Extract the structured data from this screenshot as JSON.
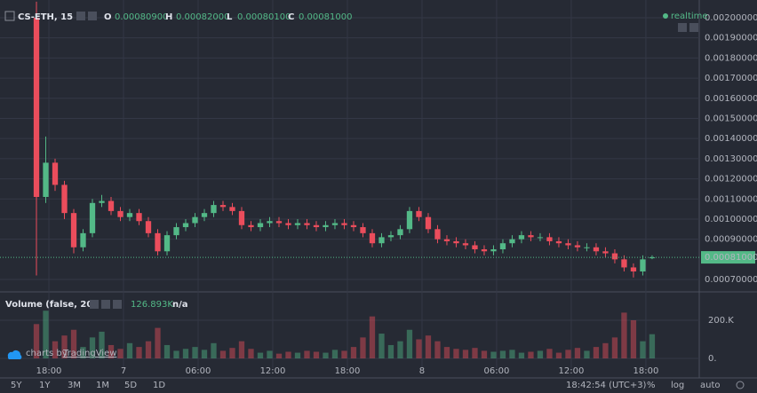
{
  "header": {
    "symbol": "CS-ETH, 15",
    "ohlc": [
      [
        "O",
        "0.00080900"
      ],
      [
        "H",
        "0.00082000"
      ],
      [
        "L",
        "0.00080100"
      ],
      [
        "C",
        "0.00081000"
      ]
    ],
    "realtime": "realtime"
  },
  "volume_header": {
    "title": "Volume (false, 20)",
    "last": "126.893K",
    "ma": "n/a"
  },
  "branding": {
    "prefix": "charts by",
    "name": "TradingView"
  },
  "toolbar": {
    "ranges": [
      "5Y",
      "1Y",
      "3M",
      "1M",
      "5D",
      "1D"
    ],
    "clock": "18:42:54 (UTC+3)",
    "percent": "%",
    "log": "log",
    "auto": "auto"
  },
  "chart_data": {
    "type": "candlestick",
    "up_color": "#53b987",
    "down_color": "#eb4d5c",
    "grid": true,
    "x": [
      17,
      17.75,
      18.5,
      19.25,
      20,
      20.75,
      21.5,
      22.25,
      23,
      23.75,
      24.5,
      25.25,
      26,
      26.75,
      27.5,
      28.25,
      29,
      29.75,
      30.5,
      31.25,
      32,
      32.75,
      33.5,
      34.25,
      35,
      35.75,
      36.5,
      37.25,
      38,
      38.75,
      39.5,
      40.25,
      41,
      41.75,
      42.5,
      43.25,
      44,
      44.75,
      45.5,
      46.25,
      47,
      47.75,
      48.5,
      49.25,
      50,
      50.75,
      51.5,
      52.25,
      53,
      53.75,
      54.5,
      55.25,
      56,
      56.75,
      57.5,
      58.25,
      59,
      59.75,
      60.5,
      61.25,
      62,
      62.75,
      63.5,
      64.25,
      65,
      65.75,
      66.5
    ],
    "open": [
      0.002,
      0.00111,
      0.00128,
      0.00117,
      0.00103,
      0.00086,
      0.00093,
      0.00108,
      0.00109,
      0.00104,
      0.00101,
      0.00103,
      0.00099,
      0.00093,
      0.00084,
      0.00092,
      0.00096,
      0.00098,
      0.00101,
      0.00103,
      0.00107,
      0.00106,
      0.00104,
      0.00097,
      0.00096,
      0.00098,
      0.00099,
      0.00098,
      0.00097,
      0.00098,
      0.00097,
      0.00096,
      0.00097,
      0.00098,
      0.00097,
      0.00096,
      0.00093,
      0.00088,
      0.00091,
      0.00092,
      0.00095,
      0.00104,
      0.00101,
      0.00095,
      0.0009,
      0.00089,
      0.00088,
      0.00087,
      0.00085,
      0.00084,
      0.00085,
      0.00088,
      0.0009,
      0.00092,
      0.00091,
      0.00091,
      0.00089,
      0.00088,
      0.00087,
      0.00086,
      0.00086,
      0.00084,
      0.00083,
      0.0008,
      0.00076,
      0.00074,
      0.000809
    ],
    "high": [
      0.00208,
      0.00141,
      0.0013,
      0.00119,
      0.00105,
      0.00095,
      0.0011,
      0.00112,
      0.00111,
      0.00106,
      0.00105,
      0.00105,
      0.00101,
      0.00095,
      0.00094,
      0.00098,
      0.001,
      0.00103,
      0.00105,
      0.00109,
      0.00109,
      0.00108,
      0.00106,
      0.00099,
      0.001,
      0.00101,
      0.00101,
      0.001,
      0.001,
      0.001,
      0.00099,
      0.00099,
      0.001,
      0.001,
      0.00099,
      0.00098,
      0.00095,
      0.00093,
      0.00094,
      0.00097,
      0.00106,
      0.00106,
      0.00103,
      0.00097,
      0.00092,
      0.00091,
      0.0009,
      0.00089,
      0.00087,
      0.00087,
      0.0009,
      0.00092,
      0.00094,
      0.00094,
      0.00093,
      0.00093,
      0.00091,
      0.0009,
      0.00089,
      0.00088,
      0.00088,
      0.00086,
      0.00085,
      0.00082,
      0.00078,
      0.00082,
      0.00082
    ],
    "low": [
      0.00072,
      0.00108,
      0.00114,
      0.001,
      0.00083,
      0.00084,
      0.00091,
      0.00106,
      0.00102,
      0.00099,
      0.00099,
      0.00097,
      0.00091,
      0.00082,
      0.00082,
      0.0009,
      0.00094,
      0.00096,
      0.00099,
      0.00101,
      0.00104,
      0.00102,
      0.00095,
      0.00094,
      0.00094,
      0.00096,
      0.00096,
      0.00095,
      0.00095,
      0.00095,
      0.00094,
      0.00094,
      0.00095,
      0.00095,
      0.00094,
      0.00091,
      0.00086,
      0.00086,
      0.00089,
      0.0009,
      0.00093,
      0.00099,
      0.00093,
      0.00088,
      0.00087,
      0.00086,
      0.00085,
      0.00083,
      0.00082,
      0.00082,
      0.00083,
      0.00086,
      0.00088,
      0.00089,
      0.00089,
      0.00087,
      0.00086,
      0.00085,
      0.00084,
      0.00084,
      0.00082,
      0.00081,
      0.00078,
      0.00074,
      0.00071,
      0.00072,
      0.000801
    ],
    "close": [
      0.00111,
      0.00128,
      0.00117,
      0.00103,
      0.00086,
      0.00093,
      0.00108,
      0.00109,
      0.00104,
      0.00101,
      0.00103,
      0.00099,
      0.00093,
      0.00084,
      0.00092,
      0.00096,
      0.00098,
      0.00101,
      0.00103,
      0.00107,
      0.00106,
      0.00104,
      0.00097,
      0.00096,
      0.00098,
      0.00099,
      0.00098,
      0.00097,
      0.00098,
      0.00097,
      0.00096,
      0.00097,
      0.00098,
      0.00097,
      0.00096,
      0.00093,
      0.00088,
      0.00091,
      0.00092,
      0.00095,
      0.00104,
      0.00101,
      0.00095,
      0.0009,
      0.00089,
      0.00088,
      0.00087,
      0.00085,
      0.00084,
      0.00085,
      0.00088,
      0.0009,
      0.00092,
      0.00091,
      0.00091,
      0.00089,
      0.00088,
      0.00087,
      0.00086,
      0.00086,
      0.00084,
      0.00083,
      0.0008,
      0.00076,
      0.00074,
      0.0008,
      0.00081
    ],
    "volume": [
      180000,
      250000,
      90000,
      120000,
      150000,
      60000,
      110000,
      140000,
      70000,
      50000,
      80000,
      60000,
      90000,
      160000,
      70000,
      40000,
      50000,
      60000,
      45000,
      80000,
      40000,
      55000,
      90000,
      50000,
      30000,
      40000,
      25000,
      35000,
      30000,
      40000,
      35000,
      30000,
      45000,
      40000,
      60000,
      110000,
      220000,
      130000,
      70000,
      90000,
      150000,
      100000,
      120000,
      90000,
      60000,
      50000,
      45000,
      55000,
      40000,
      35000,
      40000,
      45000,
      30000,
      35000,
      40000,
      50000,
      30000,
      45000,
      55000,
      40000,
      60000,
      80000,
      110000,
      240000,
      200000,
      90000,
      126893
    ],
    "xlim": [
      14.07,
      70.29
    ],
    "xticks": [
      {
        "value": 18,
        "label": "18:00"
      },
      {
        "value": 24,
        "label": "7"
      },
      {
        "value": 30,
        "label": "06:00"
      },
      {
        "value": 36,
        "label": "12:00"
      },
      {
        "value": 42,
        "label": "18:00"
      },
      {
        "value": 48,
        "label": "8"
      },
      {
        "value": 54,
        "label": "06:00"
      },
      {
        "value": 60,
        "label": "12:00"
      },
      {
        "value": 66,
        "label": "18:00"
      }
    ],
    "ylim": [
      0.000643,
      0.002088
    ],
    "yticks": [
      {
        "value": 0.0007,
        "label": "0.00070000"
      },
      {
        "value": 0.0009,
        "label": "0.00090000"
      },
      {
        "value": 0.001,
        "label": "0.00100000"
      },
      {
        "value": 0.0011,
        "label": "0.00110000"
      },
      {
        "value": 0.0012,
        "label": "0.00120000"
      },
      {
        "value": 0.0013,
        "label": "0.00130000"
      },
      {
        "value": 0.0014,
        "label": "0.00140000"
      },
      {
        "value": 0.0015,
        "label": "0.00150000"
      },
      {
        "value": 0.0016,
        "label": "0.00160000"
      },
      {
        "value": 0.0017,
        "label": "0.00170000"
      },
      {
        "value": 0.0018,
        "label": "0.00180000"
      },
      {
        "value": 0.0019,
        "label": "0.00190000"
      },
      {
        "value": 0.002,
        "label": "0.00200000"
      }
    ],
    "last_price": {
      "value": 0.00081,
      "label": "0.00081000"
    },
    "vlim": [
      -51000,
      344000
    ],
    "vticks": [
      {
        "value": 200000,
        "label": "200.K"
      },
      {
        "value": 0,
        "label": "0."
      }
    ]
  }
}
